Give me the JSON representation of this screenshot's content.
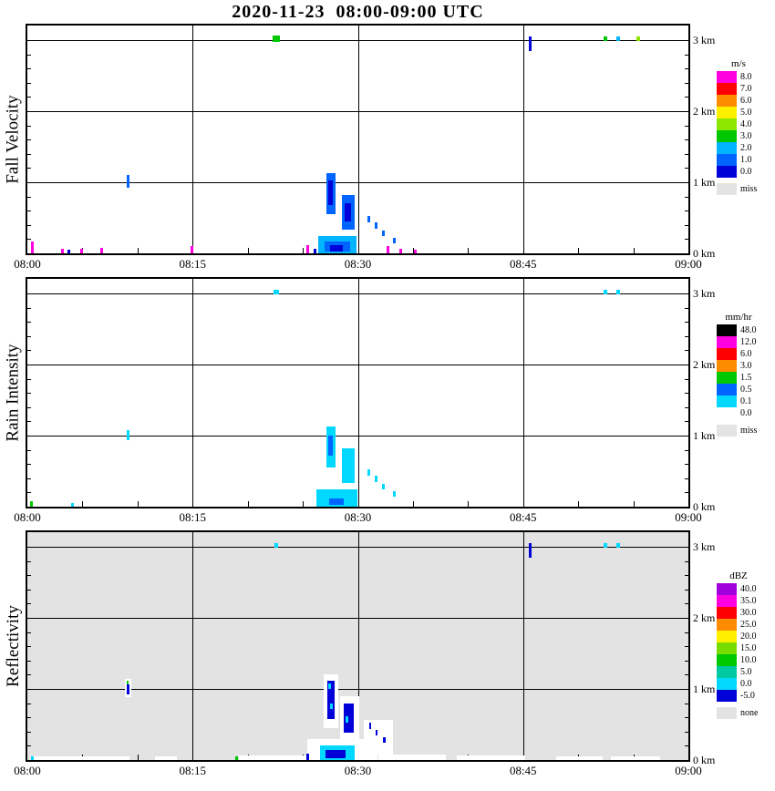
{
  "title": "2020-11-23  08:00-09:00 UTC",
  "axes": {
    "x_ticks": [
      "08:00",
      "08:15",
      "08:30",
      "08:45",
      "09:00"
    ],
    "x_minutes": [
      0,
      15,
      30,
      45,
      60
    ],
    "y_tick_labels": [
      "0 km",
      "1 km",
      "2 km",
      "3 km"
    ],
    "y_max_km": 3.2,
    "grid_t": [
      15,
      30,
      45
    ],
    "grid_km": [
      1,
      2,
      3
    ]
  },
  "chart_data": [
    {
      "type": "heatmap",
      "id": "fall-velocity",
      "ylabel": "Fall Velocity",
      "unit": "m/s",
      "plot_bg": "#FFFFFF",
      "colors": {
        "magenta": "#FF00E1",
        "red": "#FF0000",
        "orange": "#FF8C00",
        "yellow": "#FFF000",
        "yellowgreen": "#8CE600",
        "green": "#00C800",
        "cyan": "#00B4FF",
        "blue": "#0064FF",
        "darkblue": "#0000D8",
        "miss": "#E3E3E3"
      },
      "legend": [
        {
          "label": "8.0",
          "c": "magenta"
        },
        {
          "label": "7.0",
          "c": "red"
        },
        {
          "label": "6.0",
          "c": "orange"
        },
        {
          "label": "5.0",
          "c": "yellow"
        },
        {
          "label": "4.0",
          "c": "yellowgreen"
        },
        {
          "label": "3.0",
          "c": "green"
        },
        {
          "label": "2.0",
          "c": "cyan"
        },
        {
          "label": "1.0",
          "c": "blue"
        },
        {
          "label": "0.0",
          "c": "darkblue"
        },
        {
          "label": "miss",
          "c": "miss",
          "gap": true
        }
      ],
      "blobs": [
        {
          "t0": 22.3,
          "t1": 22.9,
          "h0": 2.98,
          "h1": 3.06,
          "c": "green"
        },
        {
          "t0": 45.5,
          "t1": 45.78,
          "h0": 2.84,
          "h1": 3.05,
          "c": "darkblue"
        },
        {
          "t0": 52.3,
          "t1": 52.6,
          "h0": 2.99,
          "h1": 3.05,
          "c": "green"
        },
        {
          "t0": 53.5,
          "t1": 53.8,
          "h0": 2.99,
          "h1": 3.05,
          "c": "cyan"
        },
        {
          "t0": 55.3,
          "t1": 55.6,
          "h0": 2.99,
          "h1": 3.05,
          "c": "yellowgreen"
        },
        {
          "t0": 9.0,
          "t1": 9.28,
          "h0": 0.92,
          "h1": 1.1,
          "c": "blue"
        },
        {
          "t0": 0.3,
          "t1": 0.55,
          "h0": 0.0,
          "h1": 0.17,
          "c": "magenta"
        },
        {
          "t0": 3.1,
          "t1": 3.35,
          "h0": 0.0,
          "h1": 0.07,
          "c": "magenta"
        },
        {
          "t0": 3.65,
          "t1": 3.85,
          "h0": 0.0,
          "h1": 0.05,
          "c": "darkblue"
        },
        {
          "t0": 4.8,
          "t1": 5.05,
          "h0": 0.0,
          "h1": 0.06,
          "c": "magenta"
        },
        {
          "t0": 6.6,
          "t1": 6.85,
          "h0": 0.0,
          "h1": 0.08,
          "c": "magenta"
        },
        {
          "t0": 14.85,
          "t1": 15.1,
          "h0": 0.0,
          "h1": 0.1,
          "c": "magenta"
        },
        {
          "t0": 25.3,
          "t1": 25.55,
          "h0": 0.0,
          "h1": 0.12,
          "c": "magenta"
        },
        {
          "t0": 26.0,
          "t1": 26.2,
          "h0": 0.0,
          "h1": 0.06,
          "c": "darkblue"
        },
        {
          "t0": 32.6,
          "t1": 32.85,
          "h0": 0.0,
          "h1": 0.1,
          "c": "magenta"
        },
        {
          "t0": 33.8,
          "t1": 34.05,
          "h0": 0.0,
          "h1": 0.06,
          "c": "magenta"
        },
        {
          "t0": 35.1,
          "t1": 35.3,
          "h0": 0.0,
          "h1": 0.05,
          "c": "magenta"
        },
        {
          "t0": 26.4,
          "t1": 29.9,
          "h0": 0.0,
          "h1": 0.24,
          "c": "cyan"
        },
        {
          "t0": 27.0,
          "t1": 29.3,
          "h0": 0.02,
          "h1": 0.17,
          "c": "blue"
        },
        {
          "t0": 27.5,
          "t1": 28.6,
          "h0": 0.03,
          "h1": 0.11,
          "c": "darkblue"
        },
        {
          "t0": 27.15,
          "t1": 27.95,
          "h0": 0.55,
          "h1": 1.13,
          "c": "blue"
        },
        {
          "t0": 27.35,
          "t1": 27.75,
          "h0": 0.68,
          "h1": 1.02,
          "c": "darkblue"
        },
        {
          "t0": 28.55,
          "t1": 29.75,
          "h0": 0.33,
          "h1": 0.82,
          "c": "blue"
        },
        {
          "t0": 28.8,
          "t1": 29.4,
          "h0": 0.45,
          "h1": 0.7,
          "c": "darkblue"
        },
        {
          "t0": 30.9,
          "t1": 31.15,
          "h0": 0.44,
          "h1": 0.53,
          "c": "blue"
        },
        {
          "t0": 31.5,
          "t1": 31.75,
          "h0": 0.34,
          "h1": 0.43,
          "c": "blue"
        },
        {
          "t0": 32.2,
          "t1": 32.45,
          "h0": 0.24,
          "h1": 0.32,
          "c": "blue"
        },
        {
          "t0": 33.2,
          "t1": 33.45,
          "h0": 0.14,
          "h1": 0.22,
          "c": "blue"
        }
      ]
    },
    {
      "type": "heatmap",
      "id": "rain-intensity",
      "ylabel": "Rain Intensity",
      "unit": "mm/hr",
      "plot_bg": "#FFFFFF",
      "colors": {
        "black": "#000000",
        "magenta": "#FF00E1",
        "red": "#FF0000",
        "orange": "#FF8C00",
        "green": "#00C800",
        "blue": "#0064FF",
        "cyan": "#00D8FF",
        "white": "#FFFFFF",
        "miss": "#E3E3E3"
      },
      "legend": [
        {
          "label": "48.0",
          "c": "black"
        },
        {
          "label": "12.0",
          "c": "magenta"
        },
        {
          "label": "6.0",
          "c": "red"
        },
        {
          "label": "3.0",
          "c": "orange"
        },
        {
          "label": "1.5",
          "c": "green"
        },
        {
          "label": "0.5",
          "c": "blue"
        },
        {
          "label": "0.1",
          "c": "cyan"
        },
        {
          "label": "0.0",
          "c": "white"
        },
        {
          "label": "miss",
          "c": "miss",
          "gap": true
        }
      ],
      "blobs": [
        {
          "t0": 22.35,
          "t1": 22.85,
          "h0": 2.99,
          "h1": 3.05,
          "c": "cyan"
        },
        {
          "t0": 52.3,
          "t1": 52.6,
          "h0": 2.99,
          "h1": 3.05,
          "c": "cyan"
        },
        {
          "t0": 53.5,
          "t1": 53.8,
          "h0": 2.99,
          "h1": 3.05,
          "c": "cyan"
        },
        {
          "t0": 0.25,
          "t1": 0.5,
          "h0": 0.0,
          "h1": 0.08,
          "c": "green"
        },
        {
          "t0": 4.0,
          "t1": 4.25,
          "h0": 0.0,
          "h1": 0.05,
          "c": "cyan"
        },
        {
          "t0": 9.0,
          "t1": 9.28,
          "h0": 0.94,
          "h1": 1.08,
          "c": "cyan"
        },
        {
          "t0": 26.2,
          "t1": 30.0,
          "h0": 0.0,
          "h1": 0.24,
          "c": "cyan"
        },
        {
          "t0": 27.4,
          "t1": 28.7,
          "h0": 0.02,
          "h1": 0.12,
          "c": "blue"
        },
        {
          "t0": 27.15,
          "t1": 27.95,
          "h0": 0.55,
          "h1": 1.13,
          "c": "cyan"
        },
        {
          "t0": 27.35,
          "t1": 27.75,
          "h0": 0.72,
          "h1": 1.0,
          "c": "blue"
        },
        {
          "t0": 28.55,
          "t1": 29.75,
          "h0": 0.33,
          "h1": 0.82,
          "c": "cyan"
        },
        {
          "t0": 30.9,
          "t1": 31.15,
          "h0": 0.44,
          "h1": 0.53,
          "c": "cyan"
        },
        {
          "t0": 31.5,
          "t1": 31.75,
          "h0": 0.34,
          "h1": 0.43,
          "c": "cyan"
        },
        {
          "t0": 32.2,
          "t1": 32.45,
          "h0": 0.24,
          "h1": 0.32,
          "c": "cyan"
        },
        {
          "t0": 33.2,
          "t1": 33.45,
          "h0": 0.14,
          "h1": 0.22,
          "c": "cyan"
        }
      ]
    },
    {
      "type": "heatmap",
      "id": "reflectivity",
      "ylabel": "Reflectivity",
      "unit": "dBZ",
      "plot_bg": "#E3E3E3",
      "colors": {
        "purple": "#A000DC",
        "magenta": "#FF00E1",
        "red": "#FF0000",
        "orange": "#FF8C00",
        "yellow": "#FFF000",
        "yellowgreen": "#78DC00",
        "green": "#00C800",
        "teal": "#00C8A0",
        "cyan": "#00D8FF",
        "darkblue": "#0000D8",
        "none": "#E3E3E3",
        "white": "#FFFFFF"
      },
      "legend": [
        {
          "label": "40.0",
          "c": "purple"
        },
        {
          "label": "35.0",
          "c": "magenta"
        },
        {
          "label": "30.0",
          "c": "red"
        },
        {
          "label": "25.0",
          "c": "orange"
        },
        {
          "label": "20.0",
          "c": "yellow"
        },
        {
          "label": "15.0",
          "c": "yellowgreen"
        },
        {
          "label": "10.0",
          "c": "green"
        },
        {
          "label": "5.0",
          "c": "teal"
        },
        {
          "label": "0.0",
          "c": "cyan"
        },
        {
          "label": "-5.0",
          "c": "darkblue"
        },
        {
          "label": "none",
          "c": "none",
          "gap": true
        }
      ],
      "blobs": [
        {
          "t0": 0.3,
          "t1": 9.3,
          "h0": 0.0,
          "h1": 0.05,
          "c": "white"
        },
        {
          "t0": 11.6,
          "t1": 13.6,
          "h0": 0.0,
          "h1": 0.05,
          "c": "white"
        },
        {
          "t0": 19.2,
          "t1": 25.3,
          "h0": 0.0,
          "h1": 0.06,
          "c": "white"
        },
        {
          "t0": 25.4,
          "t1": 31.8,
          "h0": 0.0,
          "h1": 0.3,
          "c": "white"
        },
        {
          "t0": 26.9,
          "t1": 28.2,
          "h0": 0.45,
          "h1": 1.2,
          "c": "white"
        },
        {
          "t0": 28.4,
          "t1": 30.1,
          "h0": 0.28,
          "h1": 0.9,
          "c": "white"
        },
        {
          "t0": 30.5,
          "t1": 33.2,
          "h0": 0.08,
          "h1": 0.56,
          "c": "white"
        },
        {
          "t0": 31.9,
          "t1": 38.0,
          "h0": 0.0,
          "h1": 0.08,
          "c": "white"
        },
        {
          "t0": 39.0,
          "t1": 45.2,
          "h0": 0.0,
          "h1": 0.06,
          "c": "white"
        },
        {
          "t0": 48.0,
          "t1": 52.2,
          "h0": 0.0,
          "h1": 0.05,
          "c": "white"
        },
        {
          "t0": 53.0,
          "t1": 57.4,
          "h0": 0.0,
          "h1": 0.05,
          "c": "white"
        },
        {
          "t0": 8.85,
          "t1": 9.45,
          "h0": 0.88,
          "h1": 1.14,
          "c": "white"
        },
        {
          "t0": 22.4,
          "t1": 22.75,
          "h0": 2.99,
          "h1": 3.05,
          "c": "cyan"
        },
        {
          "t0": 45.5,
          "t1": 45.78,
          "h0": 2.84,
          "h1": 3.05,
          "c": "darkblue"
        },
        {
          "t0": 52.3,
          "t1": 52.6,
          "h0": 2.99,
          "h1": 3.05,
          "c": "cyan"
        },
        {
          "t0": 53.5,
          "t1": 53.8,
          "h0": 2.99,
          "h1": 3.05,
          "c": "cyan"
        },
        {
          "t0": 9.0,
          "t1": 9.25,
          "h0": 0.92,
          "h1": 1.06,
          "c": "darkblue"
        },
        {
          "t0": 9.0,
          "t1": 9.2,
          "h0": 1.06,
          "h1": 1.12,
          "c": "green"
        },
        {
          "t0": 0.35,
          "t1": 0.55,
          "h0": 0.0,
          "h1": 0.05,
          "c": "cyan"
        },
        {
          "t0": 18.9,
          "t1": 19.15,
          "h0": 0.0,
          "h1": 0.05,
          "c": "green"
        },
        {
          "t0": 25.35,
          "t1": 25.55,
          "h0": 0.0,
          "h1": 0.09,
          "c": "darkblue"
        },
        {
          "t0": 26.6,
          "t1": 29.7,
          "h0": 0.0,
          "h1": 0.2,
          "c": "cyan"
        },
        {
          "t0": 27.1,
          "t1": 28.9,
          "h0": 0.02,
          "h1": 0.14,
          "c": "darkblue"
        },
        {
          "t0": 27.2,
          "t1": 27.9,
          "h0": 0.58,
          "h1": 1.12,
          "c": "darkblue"
        },
        {
          "t0": 27.35,
          "t1": 27.55,
          "h0": 1.0,
          "h1": 1.08,
          "c": "cyan"
        },
        {
          "t0": 27.5,
          "t1": 27.7,
          "h0": 0.72,
          "h1": 0.8,
          "c": "cyan"
        },
        {
          "t0": 28.7,
          "t1": 29.6,
          "h0": 0.38,
          "h1": 0.8,
          "c": "darkblue"
        },
        {
          "t0": 28.9,
          "t1": 29.15,
          "h0": 0.52,
          "h1": 0.62,
          "c": "cyan"
        },
        {
          "t0": 31.0,
          "t1": 31.2,
          "h0": 0.44,
          "h1": 0.52,
          "c": "darkblue"
        },
        {
          "t0": 31.6,
          "t1": 31.8,
          "h0": 0.34,
          "h1": 0.42,
          "c": "darkblue"
        },
        {
          "t0": 32.3,
          "t1": 32.5,
          "h0": 0.24,
          "h1": 0.32,
          "c": "darkblue"
        }
      ]
    }
  ]
}
